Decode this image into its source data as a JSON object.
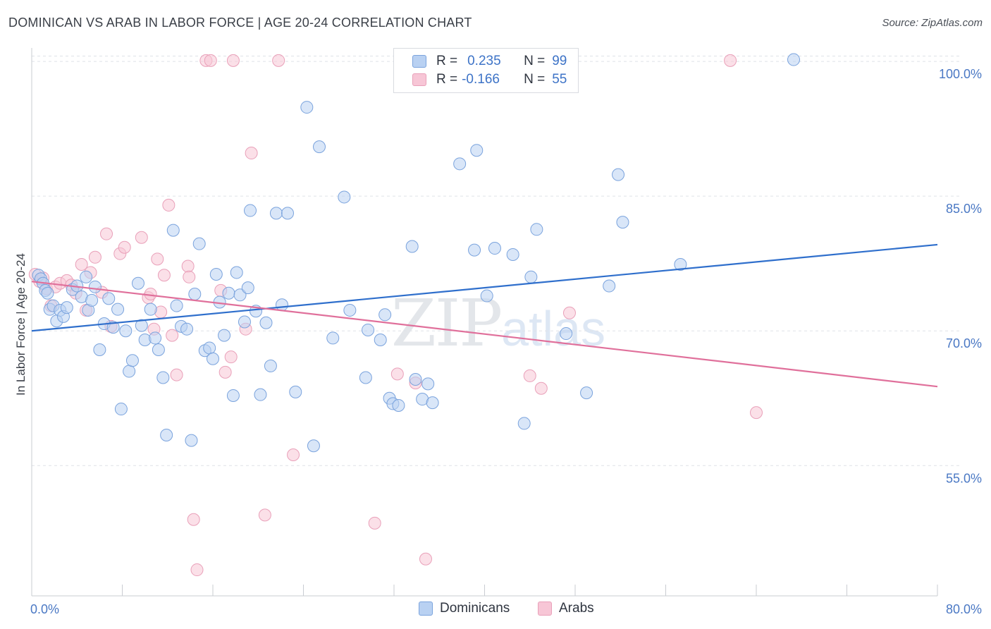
{
  "title": "DOMINICAN VS ARAB IN LABOR FORCE | AGE 20-24 CORRELATION CHART",
  "source": "Source: ZipAtlas.com",
  "watermark": {
    "zip": "ZIP",
    "atlas": "atlas"
  },
  "legend": {
    "r_label": "R =",
    "n_label": "N =",
    "rows": [
      {
        "r": "0.235",
        "n": "99"
      },
      {
        "r": "-0.166",
        "n": "55"
      }
    ]
  },
  "colors": {
    "dominican_fill": "#b9d1f2",
    "dominican_stroke": "#7aa3dd",
    "dominican_line": "#2f6fcc",
    "arab_fill": "#f7c6d6",
    "arab_stroke": "#e9a0b9",
    "arab_line": "#e0709b",
    "grid": "#dfe2e7",
    "tick_label": "#4a78c4"
  },
  "chart_data": {
    "type": "scatter",
    "title": "DOMINICAN VS ARAB IN LABOR FORCE | AGE 20-24 CORRELATION CHART",
    "xlabel": "",
    "ylabel": "In Labor Force | Age 20-24",
    "xlim": [
      0,
      80
    ],
    "ylim": [
      40.5,
      101.5
    ],
    "x_tick_labels": [
      "0.0%",
      "80.0%"
    ],
    "y_ticks": [
      55,
      70,
      85,
      100
    ],
    "y_tick_labels": [
      "55.0%",
      "70.0%",
      "85.0%",
      "100.0%"
    ],
    "grid": true,
    "legend_placement": "top-center",
    "series": [
      {
        "name": "Dominicans",
        "trend": [
          [
            0,
            70.0
          ],
          [
            80,
            79.6
          ]
        ],
        "points": [
          [
            0.6,
            76.2
          ],
          [
            0.8,
            75.8
          ],
          [
            1.0,
            75.3
          ],
          [
            1.2,
            74.5
          ],
          [
            1.4,
            74.2
          ],
          [
            1.6,
            72.4
          ],
          [
            1.9,
            72.8
          ],
          [
            2.2,
            71.1
          ],
          [
            2.5,
            72.3
          ],
          [
            2.8,
            71.6
          ],
          [
            3.1,
            72.6
          ],
          [
            3.6,
            74.6
          ],
          [
            4.0,
            75.0
          ],
          [
            4.4,
            73.8
          ],
          [
            4.8,
            76.0
          ],
          [
            5.0,
            72.3
          ],
          [
            5.3,
            73.4
          ],
          [
            5.6,
            74.9
          ],
          [
            6.0,
            67.9
          ],
          [
            6.4,
            70.8
          ],
          [
            6.8,
            73.6
          ],
          [
            7.2,
            70.4
          ],
          [
            7.6,
            72.4
          ],
          [
            7.9,
            61.3
          ],
          [
            8.3,
            70.0
          ],
          [
            8.6,
            65.5
          ],
          [
            8.9,
            66.7
          ],
          [
            9.4,
            75.3
          ],
          [
            9.7,
            70.6
          ],
          [
            10.0,
            69.0
          ],
          [
            10.5,
            72.4
          ],
          [
            10.9,
            69.2
          ],
          [
            11.2,
            67.9
          ],
          [
            11.6,
            64.8
          ],
          [
            11.9,
            58.4
          ],
          [
            12.5,
            81.2
          ],
          [
            12.8,
            72.8
          ],
          [
            13.2,
            70.5
          ],
          [
            13.7,
            70.2
          ],
          [
            14.1,
            57.8
          ],
          [
            14.4,
            74.1
          ],
          [
            14.8,
            79.7
          ],
          [
            15.3,
            67.8
          ],
          [
            15.7,
            68.1
          ],
          [
            16.0,
            66.9
          ],
          [
            16.3,
            76.3
          ],
          [
            16.6,
            73.2
          ],
          [
            17.0,
            69.5
          ],
          [
            17.4,
            74.2
          ],
          [
            17.8,
            62.8
          ],
          [
            18.1,
            76.5
          ],
          [
            18.4,
            74.0
          ],
          [
            18.8,
            71.0
          ],
          [
            19.1,
            74.8
          ],
          [
            19.3,
            83.4
          ],
          [
            19.8,
            72.2
          ],
          [
            20.2,
            62.9
          ],
          [
            20.7,
            70.9
          ],
          [
            21.1,
            66.1
          ],
          [
            21.6,
            83.1
          ],
          [
            22.1,
            72.9
          ],
          [
            22.6,
            83.1
          ],
          [
            23.3,
            63.2
          ],
          [
            24.3,
            94.9
          ],
          [
            24.9,
            57.2
          ],
          [
            25.4,
            90.5
          ],
          [
            26.6,
            69.2
          ],
          [
            27.6,
            84.9
          ],
          [
            28.1,
            72.3
          ],
          [
            29.5,
            64.8
          ],
          [
            29.7,
            70.1
          ],
          [
            30.8,
            69.0
          ],
          [
            31.2,
            71.8
          ],
          [
            31.6,
            62.5
          ],
          [
            31.9,
            61.9
          ],
          [
            32.4,
            61.7
          ],
          [
            33.6,
            79.4
          ],
          [
            33.9,
            64.6
          ],
          [
            34.5,
            62.4
          ],
          [
            35.0,
            64.1
          ],
          [
            35.4,
            62.0
          ],
          [
            37.8,
            88.6
          ],
          [
            39.1,
            79.0
          ],
          [
            39.3,
            90.1
          ],
          [
            40.2,
            73.9
          ],
          [
            40.9,
            79.2
          ],
          [
            42.5,
            78.5
          ],
          [
            43.5,
            59.7
          ],
          [
            44.1,
            76.0
          ],
          [
            44.6,
            81.3
          ],
          [
            47.2,
            69.7
          ],
          [
            49.0,
            63.1
          ],
          [
            51.0,
            75.0
          ],
          [
            51.8,
            87.4
          ],
          [
            52.2,
            82.1
          ],
          [
            57.3,
            77.4
          ],
          [
            67.3,
            100.2
          ]
        ]
      },
      {
        "name": "Arabs",
        "trend": [
          [
            0,
            75.5
          ],
          [
            80,
            63.8
          ]
        ],
        "points": [
          [
            0.3,
            76.3
          ],
          [
            0.7,
            75.5
          ],
          [
            1.0,
            75.9
          ],
          [
            1.3,
            74.7
          ],
          [
            1.7,
            72.8
          ],
          [
            2.1,
            74.9
          ],
          [
            2.5,
            75.3
          ],
          [
            3.1,
            75.6
          ],
          [
            3.5,
            75.1
          ],
          [
            3.9,
            74.2
          ],
          [
            4.4,
            77.4
          ],
          [
            4.8,
            72.3
          ],
          [
            5.2,
            76.5
          ],
          [
            5.6,
            78.2
          ],
          [
            6.2,
            74.3
          ],
          [
            6.6,
            80.8
          ],
          [
            7.0,
            70.5
          ],
          [
            7.8,
            78.6
          ],
          [
            8.2,
            79.3
          ],
          [
            9.7,
            80.4
          ],
          [
            10.3,
            73.7
          ],
          [
            10.5,
            74.1
          ],
          [
            10.8,
            70.2
          ],
          [
            11.1,
            78.0
          ],
          [
            11.4,
            72.1
          ],
          [
            11.7,
            76.2
          ],
          [
            12.1,
            84.0
          ],
          [
            12.4,
            69.5
          ],
          [
            12.8,
            65.1
          ],
          [
            13.8,
            77.2
          ],
          [
            13.9,
            76.0
          ],
          [
            14.3,
            49.0
          ],
          [
            14.6,
            43.4
          ],
          [
            15.4,
            100.1
          ],
          [
            15.8,
            100.1
          ],
          [
            16.7,
            74.5
          ],
          [
            17.1,
            65.4
          ],
          [
            17.6,
            67.1
          ],
          [
            17.8,
            100.1
          ],
          [
            18.9,
            70.2
          ],
          [
            19.4,
            89.8
          ],
          [
            20.6,
            49.5
          ],
          [
            21.8,
            100.1
          ],
          [
            23.1,
            56.2
          ],
          [
            30.3,
            48.6
          ],
          [
            32.3,
            65.2
          ],
          [
            33.9,
            64.2
          ],
          [
            34.8,
            44.6
          ],
          [
            44.0,
            65.0
          ],
          [
            45.0,
            63.6
          ],
          [
            47.5,
            72.0
          ],
          [
            61.7,
            100.1
          ],
          [
            64.0,
            60.9
          ]
        ]
      }
    ]
  },
  "bottom_legend": [
    "Dominicans",
    "Arabs"
  ]
}
